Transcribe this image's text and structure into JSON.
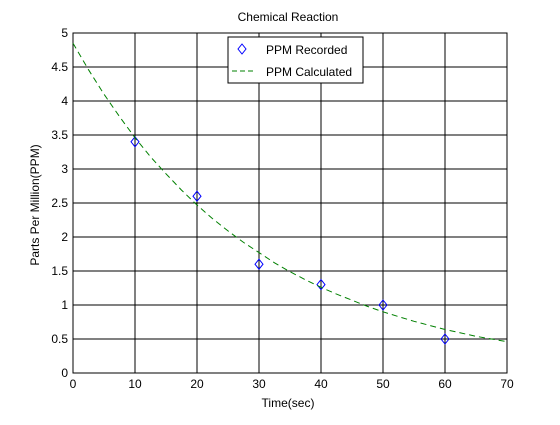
{
  "chart_data": {
    "type": "line",
    "title": "Chemical Reaction",
    "xlabel": "Time(sec)",
    "ylabel": "Parts Per Million(PPM)",
    "xlim": [
      0,
      70
    ],
    "ylim": [
      0,
      5
    ],
    "xticks": [
      0,
      10,
      20,
      30,
      40,
      50,
      60,
      70
    ],
    "yticks": [
      0,
      0.5,
      1,
      1.5,
      2,
      2.5,
      3,
      3.5,
      4,
      4.5,
      5
    ],
    "xtick_labels": [
      "0",
      "10",
      "20",
      "30",
      "40",
      "50",
      "60",
      "70"
    ],
    "ytick_labels": [
      "0",
      "0.5",
      "1",
      "1.5",
      "2",
      "2.5",
      "3",
      "3.5",
      "4",
      "4.5",
      "5"
    ],
    "grid": true,
    "legend_position": "top-center",
    "series": [
      {
        "name": "PPM Recorded",
        "style": "markers",
        "marker": "diamond",
        "color": "#0000ff",
        "x": [
          10,
          20,
          30,
          40,
          50,
          60
        ],
        "y": [
          3.4,
          2.6,
          1.6,
          1.3,
          1.0,
          0.5
        ]
      },
      {
        "name": "PPM Calculated",
        "style": "dashed-line",
        "color": "#008000",
        "x": [
          0,
          2.5,
          5,
          7.5,
          10,
          12.5,
          15,
          17.5,
          20,
          22.5,
          25,
          27.5,
          30,
          32.5,
          35,
          37.5,
          40,
          42.5,
          45,
          47.5,
          50,
          52.5,
          55,
          57.5,
          60,
          62.5,
          65,
          67.5,
          70
        ],
        "y": [
          4.85,
          4.46,
          4.1,
          3.77,
          3.46,
          3.18,
          2.93,
          2.69,
          2.47,
          2.27,
          2.09,
          1.92,
          1.77,
          1.62,
          1.49,
          1.37,
          1.26,
          1.16,
          1.07,
          0.98,
          0.9,
          0.83,
          0.76,
          0.7,
          0.64,
          0.59,
          0.54,
          0.5,
          0.46
        ]
      }
    ]
  }
}
